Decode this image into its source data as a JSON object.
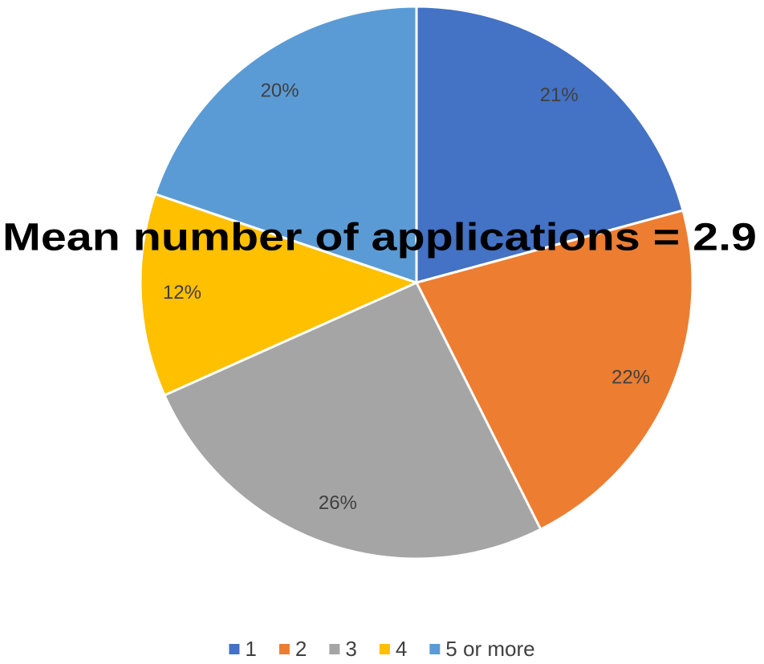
{
  "chart_data": {
    "type": "pie",
    "annotation": "Mean number of applications = 2.9",
    "categories": [
      "1",
      "2",
      "3",
      "4",
      "5 or more"
    ],
    "values": [
      21,
      22,
      26,
      12,
      20
    ],
    "value_labels": [
      "21%",
      "22%",
      "26%",
      "12%",
      "20%"
    ],
    "colors": [
      "#4472c4",
      "#ed7d31",
      "#a5a5a5",
      "#ffc000",
      "#5b9bd5"
    ],
    "legend": "bottom"
  }
}
